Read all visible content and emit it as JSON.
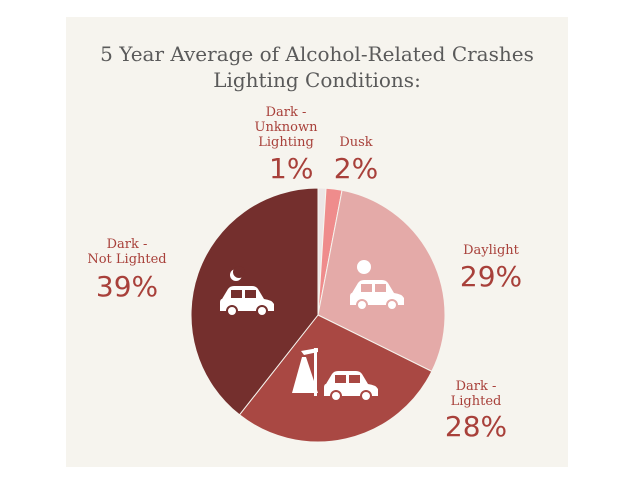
{
  "chart_data": {
    "type": "pie",
    "title": "5 Year Average of Alcohol-Related Crashes",
    "subtitle": "Lighting Conditions:",
    "slices": [
      {
        "label_lines": [
          "Dark -",
          "Unknown",
          "Lighting"
        ],
        "value": 1,
        "value_label": "1%",
        "color": "#ece6e6"
      },
      {
        "label_lines": [
          "Dusk"
        ],
        "value": 2,
        "value_label": "2%",
        "color": "#ef8c8c"
      },
      {
        "label_lines": [
          "Daylight"
        ],
        "value": 29,
        "value_label": "29%",
        "color": "#e4aaa8"
      },
      {
        "label_lines": [
          "Dark -",
          "Lighted"
        ],
        "value": 28,
        "value_label": "28%",
        "color": "#a94843"
      },
      {
        "label_lines": [
          "Dark -",
          "Not Lighted"
        ],
        "value": 39,
        "value_label": "39%",
        "color": "#742f2d"
      }
    ]
  },
  "icons": [
    "moon-icon",
    "sun-icon",
    "car-icon",
    "streetlight-icon"
  ]
}
